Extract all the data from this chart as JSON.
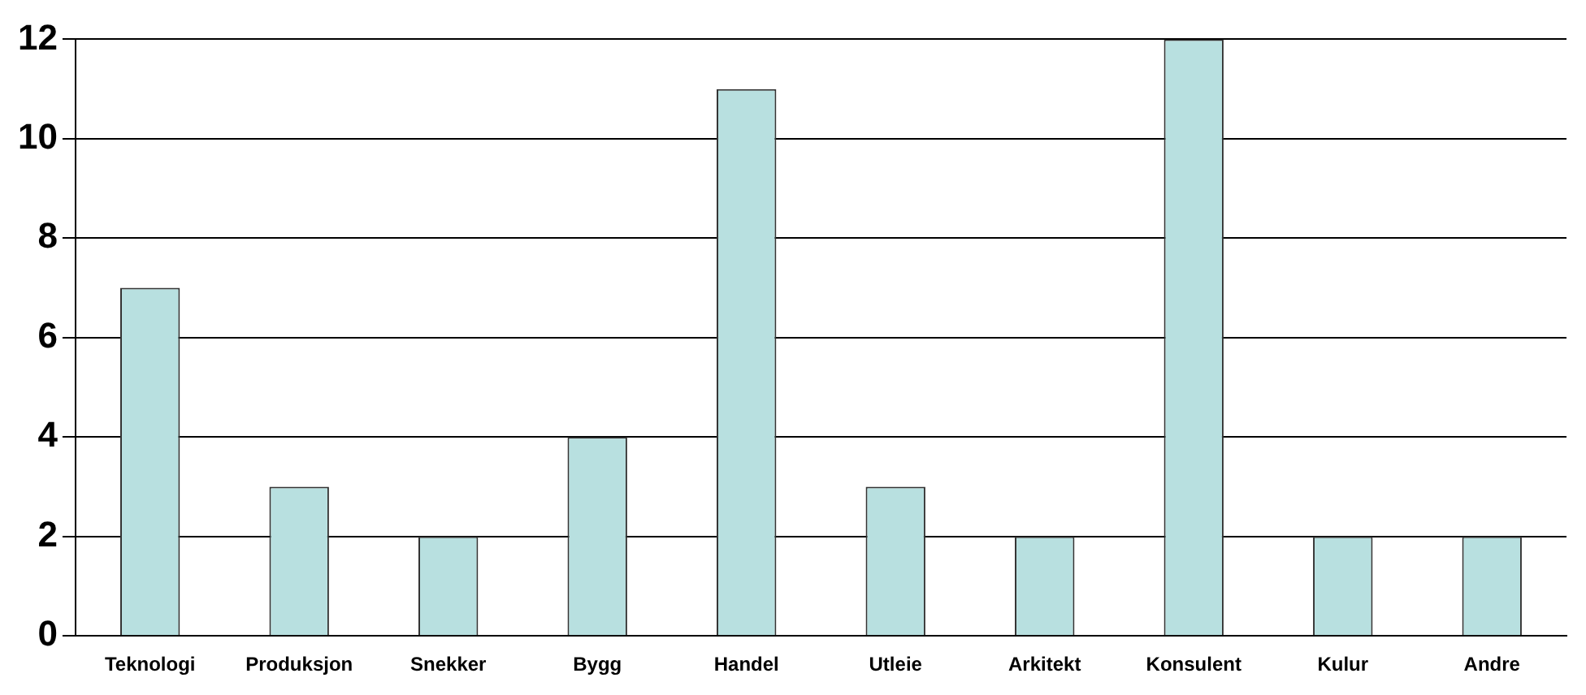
{
  "chart_data": {
    "type": "bar",
    "categories": [
      "Teknologi",
      "Produksjon",
      "Snekker",
      "Bygg",
      "Handel",
      "Utleie",
      "Arkitekt",
      "Konsulent",
      "Kulur",
      "Andre"
    ],
    "values": [
      7,
      3,
      2,
      4,
      11,
      3,
      2,
      12,
      2,
      2
    ],
    "color": "#b8e0e0",
    "ylim": [
      0,
      12
    ],
    "yticks": [
      0,
      2,
      4,
      6,
      8,
      10,
      12
    ],
    "grid": "y",
    "legend": false
  }
}
